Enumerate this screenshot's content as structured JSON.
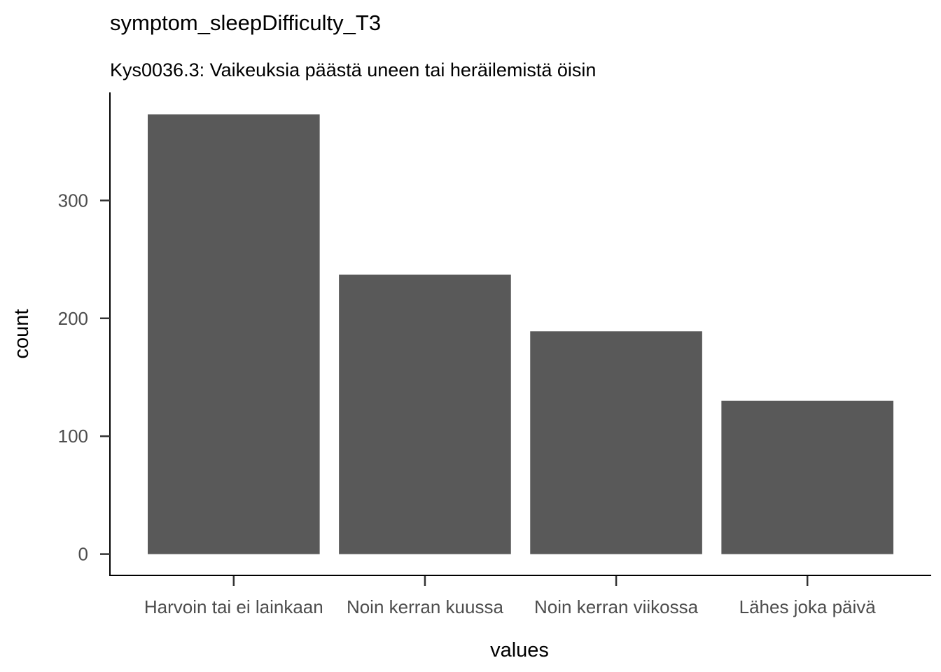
{
  "chart_data": {
    "type": "bar",
    "title": "symptom_sleepDifficulty_T3",
    "subtitle": "Kys0036.3: Vaikeuksia päästä uneen tai heräilemistä öisin",
    "xlabel": "values",
    "ylabel": "count",
    "categories": [
      "Harvoin tai ei lainkaan",
      "Noin kerran kuussa",
      "Noin kerran viikossa",
      "Lähes joka päivä"
    ],
    "values": [
      373,
      237,
      189,
      130
    ],
    "yticks": [
      0,
      100,
      200,
      300
    ],
    "ylim": [
      -18.65,
      391.65
    ],
    "grid": false,
    "bar_color": "#595959"
  }
}
